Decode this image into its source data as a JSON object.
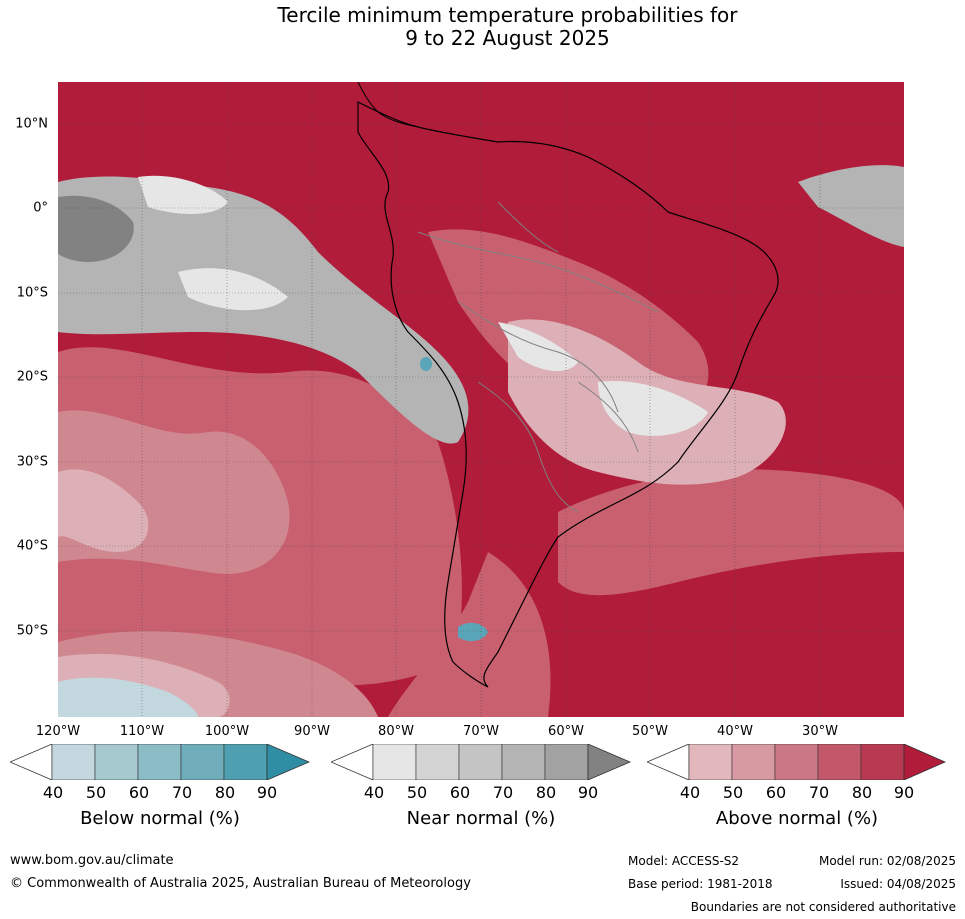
{
  "title": {
    "line1": "Tercile minimum temperature probabilities for",
    "line2": "9 to 22 August 2025"
  },
  "map": {
    "lat_labels": [
      "10°N",
      "0°",
      "10°S",
      "20°S",
      "30°S",
      "40°S",
      "50°S"
    ],
    "lon_labels": [
      "120°W",
      "110°W",
      "100°W",
      "90°W",
      "80°W",
      "70°W",
      "60°W",
      "50°W",
      "40°W",
      "30°W"
    ],
    "colors": {
      "ocean_base": "#b01c3a",
      "above_80": "#c03a52",
      "above_70": "#c86070",
      "above_60": "#d08890",
      "above_50": "#dcb0b6",
      "near_gray": "#b4b4b4",
      "near_dark": "#828282",
      "near_light": "#e6e6e6",
      "below_teal": "#5aa6b8",
      "below_light": "#c2d8de",
      "coast": "#000000",
      "border": "#808080"
    }
  },
  "colorbars": [
    {
      "label": "Below normal (%)",
      "ticks": [
        "40",
        "50",
        "60",
        "70",
        "80",
        "90"
      ],
      "colors": [
        "#ffffff",
        "#c2d8de",
        "#a6c8cf",
        "#8cbcc6",
        "#6fadba",
        "#4e9fb0",
        "#2f8ea4"
      ]
    },
    {
      "label": "Near normal (%)",
      "ticks": [
        "40",
        "50",
        "60",
        "70",
        "80",
        "90"
      ],
      "colors": [
        "#ffffff",
        "#e6e6e6",
        "#d4d4d4",
        "#c4c4c4",
        "#b4b4b4",
        "#a2a2a2",
        "#828282"
      ]
    },
    {
      "label": "Above normal (%)",
      "ticks": [
        "40",
        "50",
        "60",
        "70",
        "80",
        "90"
      ],
      "colors": [
        "#ffffff",
        "#e2b8bd",
        "#d79aa2",
        "#cc7884",
        "#c2586a",
        "#b83a52",
        "#b01c3a"
      ]
    }
  ],
  "footer": {
    "website": "www.bom.gov.au/climate",
    "copyright": "© Commonwealth of Australia 2025, Australian Bureau of Meteorology",
    "model": "Model: ACCESS-S2",
    "model_run": "Model run: 02/08/2025",
    "base_period": "Base period: 1981-2018",
    "issued": "Issued: 04/08/2025",
    "disclaimer": "Boundaries are not considered authoritative"
  }
}
